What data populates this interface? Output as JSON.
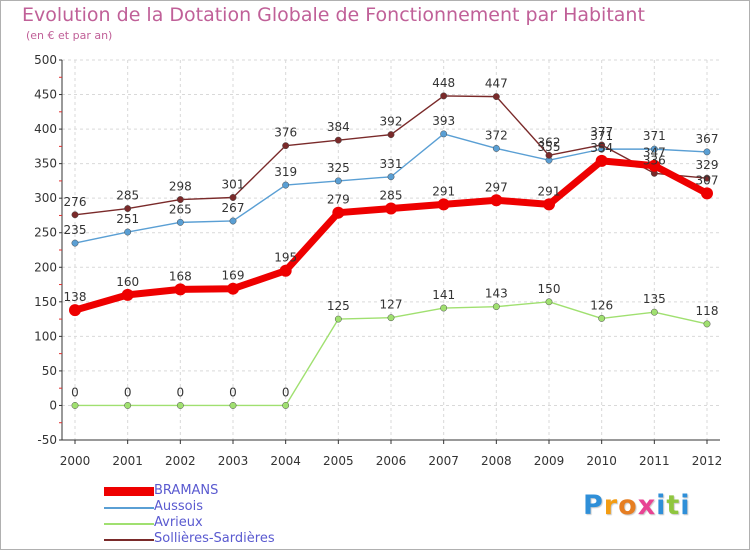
{
  "page": {
    "title": "Evolution de la Dotation Globale de Fonctionnement par Habitant",
    "subtitle": "(en € et par an)"
  },
  "logo": {
    "letters": [
      "P",
      "r",
      "o",
      "x",
      "i",
      "t",
      "i"
    ],
    "colors": [
      "#2f8fd8",
      "#f39c12",
      "#e67e22",
      "#e84393",
      "#2f8fd8",
      "#8fc63f",
      "#2f8fd8"
    ]
  },
  "chart_data": {
    "type": "line",
    "title": "Evolution de la Dotation Globale de Fonctionnement par Habitant",
    "subtitle": "(en € et par an)",
    "xlabel": "",
    "ylabel": "",
    "ylim": [
      -50,
      500
    ],
    "yticks": [
      -50,
      0,
      50,
      100,
      150,
      200,
      250,
      300,
      350,
      400,
      450,
      500
    ],
    "x": [
      "2000",
      "2001",
      "2002",
      "2003",
      "2004",
      "2005",
      "2006",
      "2007",
      "2008",
      "2009",
      "2010",
      "2011",
      "2012"
    ],
    "legend_position": "bottom-left",
    "series": [
      {
        "name": "BRAMANS",
        "color": "#ee0000",
        "values": [
          138,
          160,
          168,
          169,
          195,
          279,
          285,
          291,
          297,
          291,
          354,
          347,
          307
        ],
        "labels": [
          "138",
          "160",
          "168",
          "169",
          "195",
          "279",
          "285",
          "291",
          "297",
          "291",
          "354",
          "347",
          "307"
        ]
      },
      {
        "name": "Aussois",
        "color": "#5a9fd4",
        "values": [
          235,
          251,
          265,
          267,
          319,
          325,
          331,
          393,
          372,
          355,
          371,
          371,
          367
        ],
        "labels": [
          "235",
          "251",
          "265",
          "267",
          "319",
          "325",
          "331",
          "393",
          "372",
          "355",
          "371",
          "371",
          "367"
        ]
      },
      {
        "name": "Avrieux",
        "color": "#a0e070",
        "values": [
          0,
          0,
          0,
          0,
          0,
          125,
          127,
          141,
          143,
          150,
          126,
          135,
          118
        ],
        "labels": [
          "0",
          "0",
          "0",
          "0",
          "0",
          "125",
          "127",
          "141",
          "143",
          "150",
          "126",
          "135",
          "118"
        ]
      },
      {
        "name": "Sollières-Sardières",
        "color": "#7a2a2a",
        "values": [
          276,
          285,
          298,
          301,
          376,
          384,
          392,
          448,
          447,
          362,
          377,
          336,
          329
        ],
        "labels": [
          "276",
          "285",
          "298",
          "301",
          "376",
          "384",
          "392",
          "448",
          "447",
          "362",
          "377",
          "336",
          "329"
        ]
      }
    ]
  }
}
